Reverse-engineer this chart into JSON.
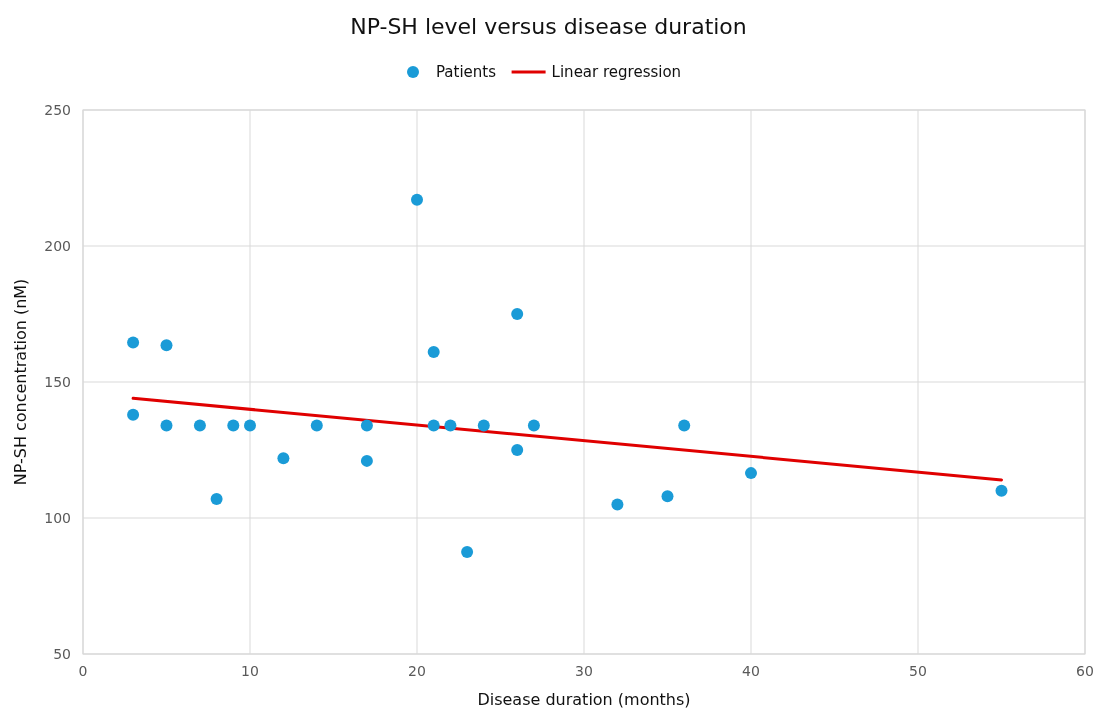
{
  "chart_data": {
    "type": "scatter",
    "title": "NP-SH level versus disease duration",
    "xlabel": "Disease duration (months)",
    "ylabel": "NP-SH concentration (nM)",
    "xlim": [
      0,
      60
    ],
    "xticks": [
      0,
      10,
      20,
      30,
      40,
      50,
      60
    ],
    "ylim": [
      50,
      250
    ],
    "yticks": [
      50,
      100,
      150,
      200,
      250
    ],
    "grid": true,
    "legend": "top",
    "series": [
      {
        "name": "Patients",
        "marker": "circle",
        "color": "#1a9bd7",
        "x": [
          3,
          3,
          5,
          5,
          7,
          8,
          9,
          10,
          12,
          14,
          17,
          17,
          20,
          21,
          21,
          22,
          23,
          24,
          26,
          26,
          27,
          32,
          35,
          36,
          40,
          55
        ],
        "values": [
          164.5,
          138,
          163.5,
          134,
          134,
          107,
          134,
          134,
          122,
          134,
          134,
          121,
          217,
          161,
          134,
          134,
          87.5,
          134,
          175,
          125,
          134,
          105,
          108,
          134,
          116.5,
          110
        ]
      },
      {
        "name": "Linear regression",
        "type": "line",
        "line_style": "solid",
        "color": "#e00000",
        "x": [
          3,
          55
        ],
        "values": [
          144,
          114
        ]
      }
    ]
  }
}
